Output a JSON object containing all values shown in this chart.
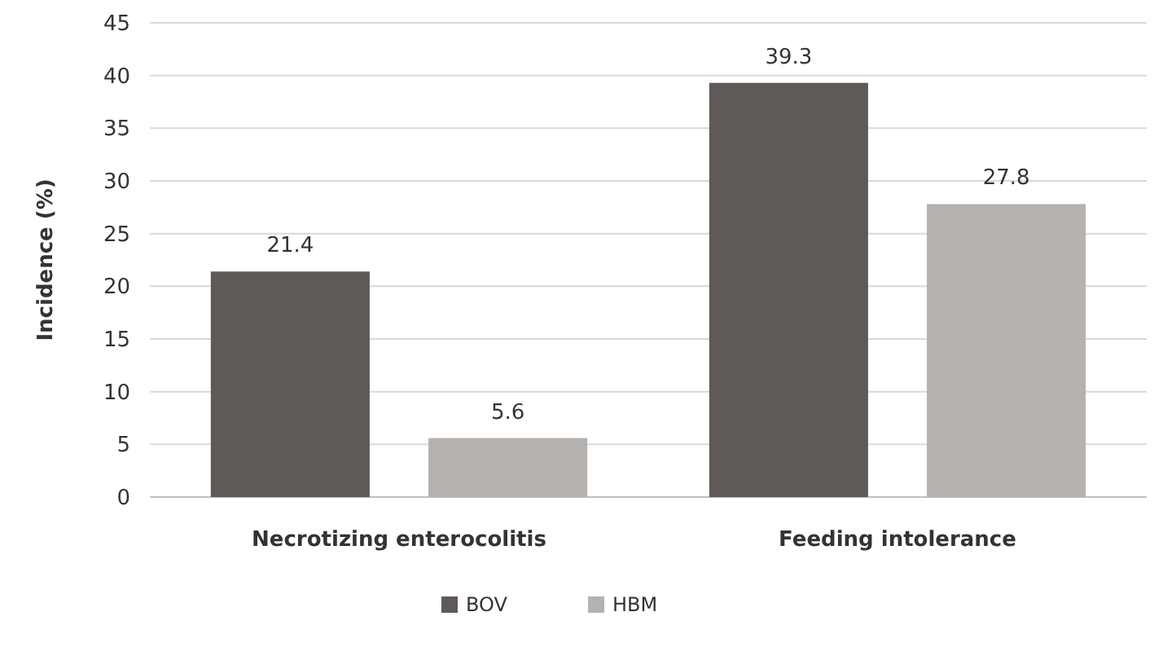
{
  "chart_data": {
    "type": "bar",
    "ylabel": "Incidence (%)",
    "categories": [
      "Necrotizing enterocolitis",
      "Feeding intolerance"
    ],
    "series": [
      {
        "name": "BOV",
        "color": "#5f5a57",
        "values": [
          21.4,
          39.3
        ]
      },
      {
        "name": "HBM",
        "color": "#b5b1ae",
        "values": [
          5.6,
          27.8
        ]
      }
    ],
    "ylim": [
      0,
      45
    ],
    "yticks": [
      0,
      5,
      10,
      15,
      20,
      25,
      30,
      35,
      40,
      45
    ],
    "grid": "y",
    "legend": "bottom",
    "data_labels": true
  }
}
